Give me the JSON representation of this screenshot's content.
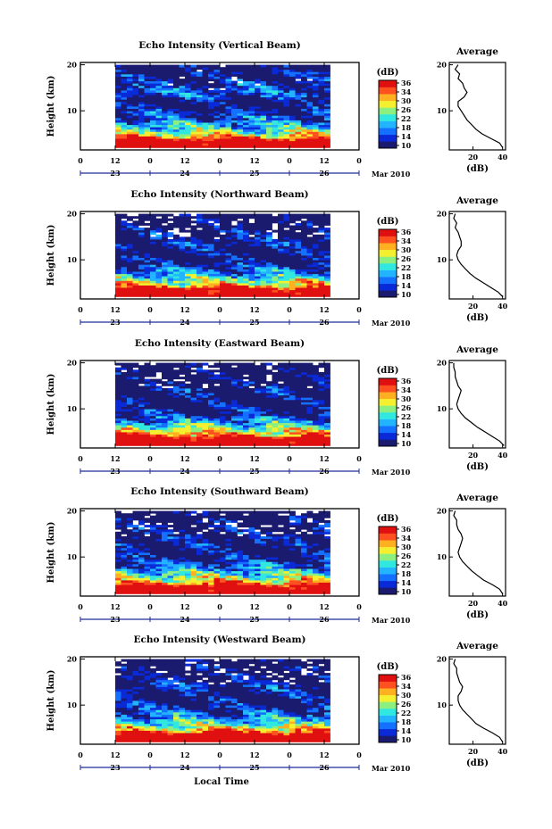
{
  "colorbar": {
    "unit": "(dB)",
    "ticks": [
      "36",
      "34",
      "30",
      "26",
      "22",
      "18",
      "14",
      "10"
    ],
    "range": [
      10,
      38
    ],
    "colors": [
      "#1a1a6e",
      "#0a2ad8",
      "#1470ff",
      "#22b4ff",
      "#30e8e0",
      "#8cf080",
      "#f4f030",
      "#ffb020",
      "#ff5020",
      "#e01010"
    ]
  },
  "axes": {
    "y_label": "Height (km)",
    "y_ticks": [
      "20",
      "10"
    ],
    "y_range_km": [
      1.5,
      20.5
    ],
    "hour_ticks": [
      "0",
      "12",
      "0",
      "12",
      "0",
      "12",
      "0",
      "12",
      "0"
    ],
    "date_ticks": [
      "23",
      "24",
      "25",
      "26"
    ],
    "date_suffix": "Mar 2010",
    "x_label": "Local Time",
    "time_range_h": [
      0,
      96
    ],
    "data_range_h": [
      12,
      86
    ]
  },
  "profile_axes": {
    "title": "Average",
    "x_ticks": [
      "20",
      "40"
    ],
    "x_label": "(dB)",
    "x_range_db": [
      4,
      42
    ]
  },
  "chart_data": [
    {
      "type": "heatmap",
      "title": "Echo Intensity (Vertical Beam)",
      "profile": {
        "height_km": [
          2,
          3,
          4,
          5,
          6,
          7,
          8,
          9,
          10,
          11,
          12,
          13,
          14,
          15,
          16,
          17,
          18,
          19,
          20
        ],
        "db": [
          40,
          38,
          32,
          26,
          22,
          19,
          16,
          14,
          12,
          10,
          10,
          14,
          16,
          14,
          13,
          10,
          11,
          8,
          10
        ]
      }
    },
    {
      "type": "heatmap",
      "title": "Echo Intensity (Northward Beam)",
      "profile": {
        "height_km": [
          2,
          3,
          4,
          5,
          6,
          7,
          8,
          9,
          10,
          11,
          12,
          13,
          14,
          15,
          16,
          17,
          18,
          19,
          20
        ],
        "db": [
          40,
          37,
          32,
          27,
          22,
          18,
          15,
          12,
          10,
          9,
          10,
          12,
          12,
          11,
          10,
          8,
          9,
          7,
          8
        ]
      }
    },
    {
      "type": "heatmap",
      "title": "Echo Intensity (Eastward Beam)",
      "profile": {
        "height_km": [
          2,
          3,
          4,
          5,
          6,
          7,
          8,
          9,
          10,
          11,
          12,
          13,
          14,
          15,
          16,
          17,
          18,
          19,
          20
        ],
        "db": [
          41,
          38,
          33,
          28,
          23,
          19,
          15,
          12,
          10,
          9,
          10,
          11,
          12,
          10,
          9,
          8,
          8,
          7,
          7
        ]
      }
    },
    {
      "type": "heatmap",
      "title": "Echo Intensity (Southward Beam)",
      "profile": {
        "height_km": [
          2,
          3,
          4,
          5,
          6,
          7,
          8,
          9,
          10,
          11,
          12,
          13,
          14,
          15,
          16,
          17,
          18,
          19,
          20
        ],
        "db": [
          40,
          38,
          33,
          27,
          23,
          19,
          16,
          13,
          11,
          10,
          11,
          12,
          13,
          12,
          10,
          9,
          9,
          7,
          8
        ]
      }
    },
    {
      "type": "heatmap",
      "title": "Echo Intensity (Westward Beam)",
      "profile": {
        "height_km": [
          2,
          3,
          4,
          5,
          6,
          7,
          8,
          9,
          10,
          11,
          12,
          13,
          14,
          15,
          16,
          17,
          18,
          19,
          20
        ],
        "db": [
          40,
          38,
          33,
          27,
          22,
          19,
          16,
          13,
          11,
          10,
          10,
          12,
          13,
          11,
          10,
          9,
          9,
          7,
          8
        ]
      }
    }
  ]
}
